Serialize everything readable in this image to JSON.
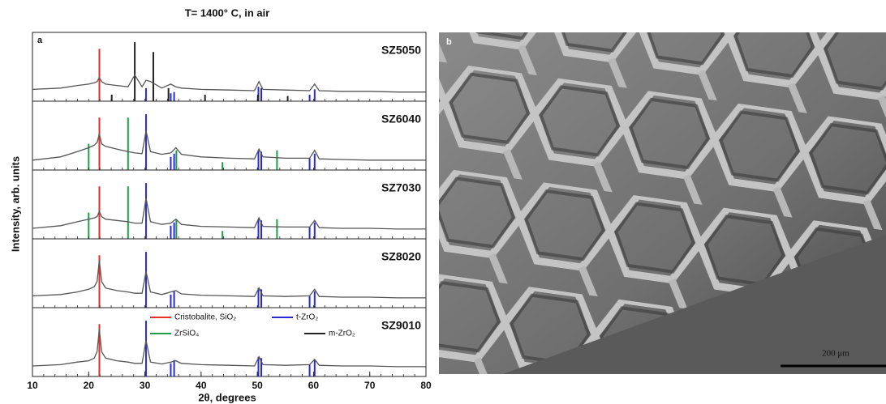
{
  "chart_data": {
    "type": "xrd",
    "title": "T= 1400° C, in air",
    "letter": "a",
    "xlabel": "2θ, degrees",
    "ylabel": "Intensity, arb. units",
    "xlim": [
      10,
      80
    ],
    "xticks": [
      10,
      20,
      30,
      40,
      50,
      60,
      70,
      80
    ],
    "ylim": [
      0,
      100
    ],
    "legend": "top-right",
    "series": [
      {
        "name": "Cristobalite, SiO₂",
        "color": "#e8312f"
      },
      {
        "name": "t-ZrO₂",
        "color": "#2a2ad6"
      },
      {
        "name": "ZrSiO₄",
        "color": "#1e9e4a"
      },
      {
        "name": "m-ZrO₂",
        "color": "#222222"
      }
    ],
    "pattern_color": "#555555",
    "panels": [
      {
        "label": "SZ5050",
        "x": [
          10,
          15,
          18,
          20,
          21,
          21.5,
          21.9,
          22.3,
          23,
          25,
          27,
          28.2,
          29.5,
          30.2,
          31,
          33,
          34.6,
          35.5,
          36.5,
          40,
          45,
          49.5,
          50.3,
          51,
          55,
          59.3,
          60.2,
          61,
          65,
          70,
          75,
          80
        ],
        "values": [
          18,
          20,
          24,
          26,
          28,
          30,
          36,
          30,
          26,
          24,
          22,
          40,
          22,
          32,
          30,
          20,
          26,
          22,
          20,
          18,
          17,
          16,
          30,
          18,
          17,
          16,
          26,
          16,
          15,
          15,
          14,
          14
        ],
        "sticks": [
          {
            "x": [
              21.9
            ],
            "values": [
              80
            ]
          },
          {
            "x": [
              30.2,
              34.6,
              35.2,
              50.2,
              50.7,
              59.3,
              60.2
            ],
            "values": [
              20,
              12,
              14,
              22,
              20,
              10,
              18
            ]
          },
          {
            "x": [],
            "values": []
          },
          {
            "x": [
              24.1,
              28.2,
              31.5,
              34.2,
              40.7,
              50.1,
              55.4
            ],
            "values": [
              10,
              90,
              75,
              20,
              10,
              10,
              8
            ]
          }
        ]
      },
      {
        "label": "SZ6040",
        "x": [
          10,
          15,
          18,
          20,
          21,
          21.5,
          21.9,
          22.3,
          23,
          25,
          27,
          28.2,
          29.5,
          30.2,
          31,
          33,
          34.6,
          35.5,
          36.5,
          40,
          45,
          49.5,
          50.3,
          51,
          55,
          59.3,
          60.2,
          61,
          65,
          70,
          75,
          80
        ],
        "values": [
          15,
          20,
          28,
          34,
          38,
          42,
          55,
          40,
          36,
          32,
          28,
          26,
          25,
          60,
          28,
          24,
          26,
          34,
          24,
          20,
          18,
          17,
          32,
          20,
          18,
          18,
          30,
          17,
          16,
          15,
          15,
          15
        ],
        "sticks": [
          {
            "x": [
              21.9
            ],
            "values": [
              80
            ]
          },
          {
            "x": [
              30.2,
              34.6,
              35.2,
              50.2,
              50.7,
              59.3,
              60.2
            ],
            "values": [
              85,
              20,
              25,
              30,
              28,
              18,
              25
            ]
          },
          {
            "x": [
              20.0,
              27.0,
              35.6,
              43.8,
              53.5
            ],
            "values": [
              40,
              80,
              30,
              12,
              30
            ]
          },
          {
            "x": [],
            "values": []
          }
        ]
      },
      {
        "label": "SZ7030",
        "x": [
          10,
          15,
          18,
          20,
          21,
          21.5,
          21.9,
          22.3,
          23,
          25,
          27,
          28.2,
          29.5,
          30.2,
          31,
          33,
          34.6,
          35.5,
          36.5,
          40,
          45,
          49.5,
          50.3,
          51,
          55,
          59.3,
          60.2,
          61,
          65,
          70,
          75,
          80
        ],
        "values": [
          16,
          20,
          26,
          30,
          32,
          34,
          42,
          34,
          30,
          28,
          26,
          24,
          24,
          62,
          26,
          22,
          24,
          30,
          22,
          19,
          18,
          17,
          32,
          19,
          18,
          18,
          28,
          17,
          16,
          16,
          15,
          15
        ],
        "sticks": [
          {
            "x": [
              21.9
            ],
            "values": [
              80
            ]
          },
          {
            "x": [
              30.2,
              34.6,
              35.2,
              50.2,
              50.7,
              59.3,
              60.2
            ],
            "values": [
              85,
              20,
              25,
              30,
              28,
              18,
              25
            ]
          },
          {
            "x": [
              20.0,
              27.0,
              35.6,
              43.8,
              53.5
            ],
            "values": [
              40,
              80,
              30,
              12,
              30
            ]
          },
          {
            "x": [],
            "values": []
          }
        ]
      },
      {
        "label": "SZ8020",
        "x": [
          10,
          15,
          18,
          20,
          21,
          21.5,
          21.9,
          22.3,
          23,
          25,
          27,
          28.2,
          29.5,
          30.2,
          31,
          33,
          34.6,
          35.5,
          36.5,
          40,
          45,
          49.5,
          50.3,
          51,
          55,
          59.3,
          60.2,
          61,
          65,
          70,
          75,
          80
        ],
        "values": [
          18,
          20,
          24,
          28,
          32,
          40,
          72,
          40,
          30,
          26,
          24,
          22,
          22,
          55,
          24,
          20,
          24,
          26,
          21,
          19,
          18,
          17,
          30,
          18,
          17,
          18,
          28,
          17,
          16,
          16,
          15,
          15
        ],
        "sticks": [
          {
            "x": [
              21.9
            ],
            "values": [
              80
            ]
          },
          {
            "x": [
              30.2,
              34.6,
              35.2,
              50.2,
              50.7,
              59.3,
              60.2
            ],
            "values": [
              85,
              20,
              25,
              30,
              28,
              18,
              25
            ]
          },
          {
            "x": [],
            "values": []
          },
          {
            "x": [],
            "values": []
          }
        ]
      },
      {
        "label": "SZ9010",
        "x": [
          10,
          15,
          18,
          20,
          21,
          21.5,
          21.9,
          22.3,
          23,
          25,
          27,
          28.2,
          29.5,
          30.2,
          31,
          33,
          34.6,
          35.5,
          36.5,
          40,
          45,
          49.5,
          50.3,
          51,
          55,
          59.3,
          60.2,
          61,
          65,
          70,
          75,
          80
        ],
        "values": [
          16,
          18,
          22,
          24,
          28,
          38,
          72,
          38,
          28,
          24,
          22,
          20,
          20,
          55,
          22,
          19,
          22,
          24,
          20,
          18,
          17,
          16,
          30,
          18,
          17,
          18,
          26,
          17,
          16,
          16,
          15,
          15
        ],
        "sticks": [
          {
            "x": [
              21.9
            ],
            "values": [
              80
            ]
          },
          {
            "x": [
              30.2,
              34.6,
              35.2,
              50.2,
              50.7,
              59.3,
              60.2
            ],
            "values": [
              85,
              20,
              25,
              30,
              28,
              18,
              25
            ]
          },
          {
            "x": [],
            "values": []
          },
          {
            "x": [],
            "values": []
          }
        ]
      }
    ]
  },
  "image": {
    "letter": "b",
    "scale_bar": "200 μm"
  }
}
